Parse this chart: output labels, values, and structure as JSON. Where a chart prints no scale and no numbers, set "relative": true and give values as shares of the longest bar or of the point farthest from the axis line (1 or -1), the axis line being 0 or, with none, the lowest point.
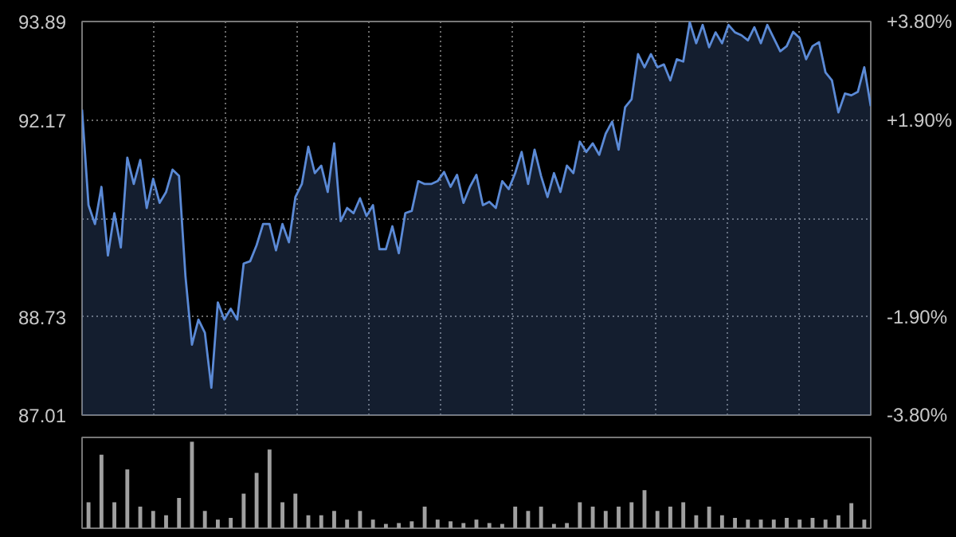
{
  "chart_data": [
    {
      "type": "area",
      "categories": [
        null,
        null,
        null,
        null,
        null,
        null,
        null,
        null,
        null,
        null,
        null,
        null,
        null,
        null,
        null,
        null,
        null,
        null,
        null,
        null,
        null,
        null,
        null,
        null,
        null,
        null,
        null,
        null,
        null,
        null,
        null,
        null,
        null,
        null,
        null,
        null,
        null,
        null,
        null,
        null,
        null,
        null,
        null,
        null,
        null,
        null,
        null,
        null,
        null,
        null,
        null,
        null,
        null,
        null,
        null,
        null,
        null,
        null,
        null,
        null,
        null,
        null,
        null,
        null,
        null,
        null,
        null,
        null,
        null,
        null,
        null,
        null,
        null,
        null,
        null,
        null,
        null,
        null,
        null,
        null,
        null,
        null,
        null,
        null,
        null,
        null,
        null,
        null,
        null,
        null,
        null,
        null,
        null,
        null,
        null,
        null,
        null,
        null,
        null,
        null,
        null,
        null,
        null,
        null,
        null,
        null,
        null,
        null,
        null,
        null,
        null,
        null,
        null,
        null,
        null,
        null,
        null,
        null,
        null,
        null,
        null,
        null,
        null
      ],
      "series": [
        {
          "color": "#5b8ad6",
          "values": [
            92.35,
            90.68,
            90.35,
            91.0,
            89.8,
            90.54,
            89.94,
            91.51,
            91.05,
            91.47,
            90.63,
            91.14,
            90.72,
            90.91,
            91.3,
            91.19,
            89.43,
            88.24,
            88.68,
            88.45,
            87.49,
            88.98,
            88.68,
            88.87,
            88.68,
            89.66,
            89.7,
            89.98,
            90.35,
            90.35,
            89.89,
            90.35,
            90.03,
            90.82,
            91.05,
            91.7,
            91.24,
            91.37,
            90.91,
            91.76,
            90.4,
            90.63,
            90.54,
            90.8,
            90.49,
            90.68,
            89.91,
            89.91,
            90.31,
            89.84,
            90.54,
            90.58,
            91.1,
            91.05,
            91.05,
            91.1,
            91.26,
            91.0,
            91.21,
            90.72,
            91.0,
            91.21,
            90.68,
            90.74,
            90.63,
            91.1,
            90.96,
            91.24,
            91.61,
            91.05,
            91.65,
            91.19,
            90.82,
            91.24,
            90.91,
            91.37,
            91.24,
            91.79,
            91.61,
            91.76,
            91.56,
            91.93,
            92.14,
            91.65,
            92.39,
            92.53,
            93.32,
            93.09,
            93.32,
            93.09,
            93.14,
            92.86,
            93.23,
            93.19,
            93.88,
            93.51,
            93.83,
            93.44,
            93.7,
            93.51,
            93.83,
            93.7,
            93.65,
            93.56,
            93.79,
            93.51,
            93.83,
            93.6,
            93.37,
            93.46,
            93.71,
            93.6,
            93.23,
            93.46,
            93.53,
            93.0,
            92.86,
            92.3,
            92.63,
            92.6,
            92.66,
            93.09,
            92.41
          ]
        }
      ],
      "ylim": [
        87.01,
        93.89
      ],
      "yticks": [
        87.01,
        88.73,
        {
          "value": 90.45,
          "label": null
        },
        92.17,
        93.89
      ],
      "y2lim": [
        -3.8,
        3.8
      ],
      "y2ticks": [
        {
          "value": -3.8,
          "label": "-3.80%"
        },
        {
          "value": -1.9,
          "label": "-1.90%"
        },
        {
          "value": 1.9,
          "label": "+1.90%"
        },
        {
          "value": 3.8,
          "label": "+3.80%"
        }
      ],
      "grid": true,
      "tick_labels": "y"
    },
    {
      "type": "bar",
      "relative": true,
      "color": "#a0a0a0",
      "tick_labels": false,
      "categories": [
        null,
        null,
        null,
        null,
        null,
        null,
        null,
        null,
        null,
        null,
        null,
        null,
        null,
        null,
        null,
        null,
        null,
        null,
        null,
        null,
        null,
        null,
        null,
        null,
        null,
        null,
        null,
        null,
        null,
        null,
        null,
        null,
        null,
        null,
        null,
        null,
        null,
        null,
        null,
        null,
        null,
        null,
        null,
        null,
        null,
        null,
        null,
        null,
        null,
        null,
        null,
        null,
        null,
        null,
        null,
        null,
        null,
        null,
        null,
        null,
        null
      ],
      "values": [
        0.3,
        0.85,
        0.3,
        0.68,
        0.25,
        0.2,
        0.15,
        0.35,
        1.0,
        0.2,
        0.1,
        0.12,
        0.4,
        0.64,
        0.91,
        0.3,
        0.4,
        0.15,
        0.15,
        0.2,
        0.1,
        0.2,
        0.1,
        0.05,
        0.06,
        0.08,
        0.25,
        0.1,
        0.08,
        0.06,
        0.1,
        0.06,
        0.05,
        0.25,
        0.2,
        0.25,
        0.05,
        0.06,
        0.3,
        0.25,
        0.2,
        0.25,
        0.3,
        0.44,
        0.2,
        0.25,
        0.3,
        0.15,
        0.25,
        0.15,
        0.12,
        0.1,
        0.1,
        0.1,
        0.12,
        0.1,
        0.12,
        0.1,
        0.15,
        0.29,
        0.1
      ]
    }
  ]
}
